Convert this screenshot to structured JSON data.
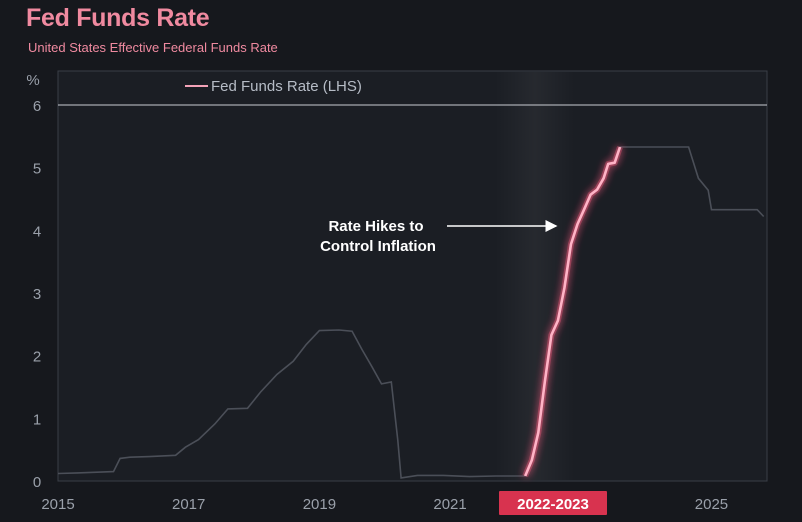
{
  "header": {
    "title": "Fed Funds Rate",
    "subtitle": "United States Effective Federal Funds Rate"
  },
  "colors": {
    "background": "#16181d",
    "title": "#f08aa0",
    "highlight": "#d8334f",
    "line_normal": "#4b4f58",
    "line_glow": "#ffb3c6"
  },
  "chart_data": {
    "type": "line",
    "title": "Fed Funds Rate",
    "subtitle": "United States Effective Federal Funds Rate",
    "ylabel": "%",
    "xlabel": "",
    "xlim": [
      2015.0,
      2025.85
    ],
    "ylim": [
      0,
      6
    ],
    "y_ticks": [
      0,
      1,
      2,
      3,
      4,
      5,
      6
    ],
    "x_ticks": [
      2015,
      2017,
      2019,
      2021,
      2023,
      2025
    ],
    "x_tick_labels": [
      "2015",
      "2017",
      "2019",
      "2021",
      "2022-2023",
      "2025"
    ],
    "highlight_tick_label": "2022-2023",
    "grid": false,
    "legend": {
      "position": "top-left",
      "entries": [
        "Fed Funds Rate (LHS)"
      ]
    },
    "annotation": {
      "lines": [
        "Rate Hikes to",
        "Control Inflation"
      ]
    },
    "series": [
      {
        "name": "Fed Funds Rate (LHS)",
        "highlight_range": [
          2022.15,
          2023.6
        ],
        "points": [
          [
            2015.0,
            0.12
          ],
          [
            2015.3,
            0.13
          ],
          [
            2015.6,
            0.14
          ],
          [
            2015.85,
            0.15
          ],
          [
            2015.95,
            0.36
          ],
          [
            2016.1,
            0.38
          ],
          [
            2016.4,
            0.39
          ],
          [
            2016.8,
            0.41
          ],
          [
            2016.95,
            0.54
          ],
          [
            2017.15,
            0.66
          ],
          [
            2017.4,
            0.91
          ],
          [
            2017.6,
            1.15
          ],
          [
            2017.9,
            1.16
          ],
          [
            2018.1,
            1.42
          ],
          [
            2018.35,
            1.7
          ],
          [
            2018.6,
            1.91
          ],
          [
            2018.8,
            2.18
          ],
          [
            2019.0,
            2.4
          ],
          [
            2019.3,
            2.41
          ],
          [
            2019.5,
            2.39
          ],
          [
            2019.65,
            2.1
          ],
          [
            2019.8,
            1.83
          ],
          [
            2019.95,
            1.55
          ],
          [
            2020.1,
            1.58
          ],
          [
            2020.2,
            0.65
          ],
          [
            2020.25,
            0.05
          ],
          [
            2020.5,
            0.09
          ],
          [
            2020.9,
            0.09
          ],
          [
            2021.3,
            0.07
          ],
          [
            2021.7,
            0.08
          ],
          [
            2022.0,
            0.08
          ],
          [
            2022.15,
            0.08
          ],
          [
            2022.25,
            0.33
          ],
          [
            2022.35,
            0.77
          ],
          [
            2022.45,
            1.58
          ],
          [
            2022.55,
            2.33
          ],
          [
            2022.65,
            2.56
          ],
          [
            2022.75,
            3.08
          ],
          [
            2022.85,
            3.78
          ],
          [
            2022.95,
            4.1
          ],
          [
            2023.05,
            4.33
          ],
          [
            2023.15,
            4.57
          ],
          [
            2023.25,
            4.65
          ],
          [
            2023.35,
            4.83
          ],
          [
            2023.42,
            5.06
          ],
          [
            2023.52,
            5.08
          ],
          [
            2023.6,
            5.33
          ],
          [
            2024.0,
            5.33
          ],
          [
            2024.4,
            5.33
          ],
          [
            2024.65,
            5.33
          ],
          [
            2024.8,
            4.83
          ],
          [
            2024.95,
            4.64
          ],
          [
            2025.0,
            4.33
          ],
          [
            2025.3,
            4.33
          ],
          [
            2025.7,
            4.33
          ],
          [
            2025.8,
            4.22
          ]
        ]
      }
    ]
  }
}
